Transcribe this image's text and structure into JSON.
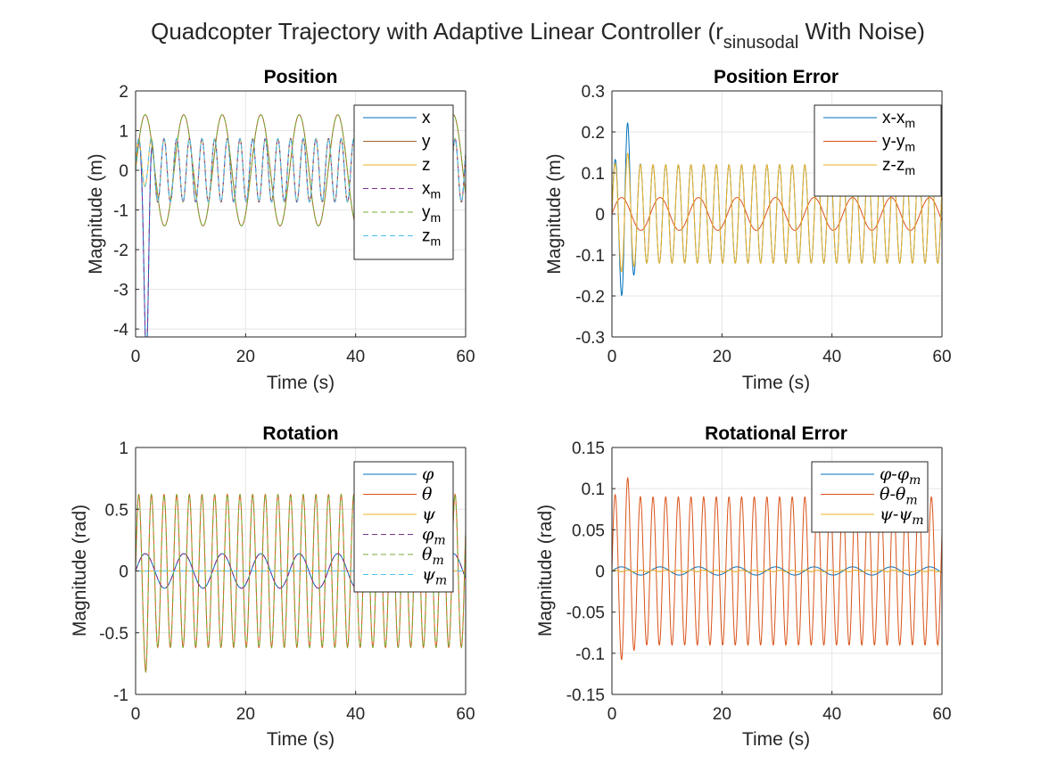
{
  "figure": {
    "title_main": "Quadcopter Trajectory with Adaptive Linear Controller (r",
    "title_sub": "sinusodal",
    "title_tail": " With Noise)"
  },
  "colors": {
    "blue": "#0072BD",
    "orange": "#D95319",
    "yellow": "#EDB120",
    "purple": "#7E2F8E",
    "green": "#77AC30",
    "cyan": "#4DBEEE",
    "brown": "#A2652A",
    "grid": "#e5e5e5",
    "axis": "#262626"
  },
  "chart_data": [
    {
      "id": "position",
      "type": "line",
      "title": "Position",
      "xlabel": "Time (s)",
      "ylabel": "Magnitude (m)",
      "xlim": [
        0,
        60
      ],
      "ylim": [
        -4.2,
        2
      ],
      "xticks": [
        0,
        20,
        40,
        60
      ],
      "yticks": [
        -4,
        -3,
        -2,
        -1,
        0,
        1,
        2
      ],
      "grid": true,
      "legend_position": "top-right",
      "legend": [
        {
          "base": "x",
          "sub": "",
          "color": "blue",
          "dash": false
        },
        {
          "base": "y",
          "sub": "",
          "color": "brown",
          "dash": false
        },
        {
          "base": "z",
          "sub": "",
          "color": "yellow",
          "dash": false
        },
        {
          "base": "x",
          "sub": "m",
          "color": "purple",
          "dash": true
        },
        {
          "base": "y",
          "sub": "m",
          "color": "green",
          "dash": true
        },
        {
          "base": "z",
          "sub": "m",
          "color": "cyan",
          "dash": true
        }
      ],
      "series": [
        {
          "color": "blue",
          "dash": false,
          "amplitude": 0.8,
          "period": 2.3,
          "dip": -4.1,
          "dip_time": 2.0
        },
        {
          "color": "brown",
          "dash": false,
          "amplitude": 1.4,
          "period": 7.0
        },
        {
          "color": "yellow",
          "dash": false,
          "amplitude": 0.8,
          "period": 2.3,
          "peak": 1.2
        },
        {
          "color": "purple",
          "dash": true,
          "amplitude": 0.8,
          "period": 2.3,
          "dip": -4.1,
          "dip_time": 2.0
        },
        {
          "color": "green",
          "dash": true,
          "amplitude": 1.4,
          "period": 7.0
        },
        {
          "color": "cyan",
          "dash": true,
          "amplitude": 0.8,
          "period": 2.3,
          "peak": 1.2
        }
      ]
    },
    {
      "id": "position-error",
      "type": "line",
      "title": "Position Error",
      "xlabel": "Time (s)",
      "ylabel": "Magnitude (m)",
      "xlim": [
        0,
        60
      ],
      "ylim": [
        -0.3,
        0.3
      ],
      "xticks": [
        0,
        20,
        40,
        60
      ],
      "yticks": [
        -0.3,
        -0.2,
        -0.1,
        0,
        0.1,
        0.2,
        0.3
      ],
      "ytick_labels": [
        "-0.3",
        "-0.2",
        "-0.1",
        "0",
        "0.1",
        "0.2",
        "0.3"
      ],
      "grid": true,
      "legend_position": "top-right",
      "legend": [
        {
          "base": "x-x",
          "sub": "m",
          "color": "blue",
          "dash": false
        },
        {
          "base": "y-y",
          "sub": "m",
          "color": "orange",
          "dash": false
        },
        {
          "base": "z-z",
          "sub": "m",
          "color": "yellow",
          "dash": false
        }
      ],
      "series": [
        {
          "color": "blue",
          "dash": false,
          "amplitude": 0.12,
          "period": 2.3,
          "peak": 0.23,
          "trough": -0.23
        },
        {
          "color": "orange",
          "dash": false,
          "amplitude": 0.04,
          "period": 7.0
        },
        {
          "color": "yellow",
          "dash": false,
          "amplitude": 0.12,
          "period": 2.3,
          "peak": 0.15,
          "trough": -0.18
        }
      ]
    },
    {
      "id": "rotation",
      "type": "line",
      "title": "Rotation",
      "xlabel": "Time (s)",
      "ylabel": "Magnitude (rad)",
      "xlim": [
        0,
        60
      ],
      "ylim": [
        -1,
        1
      ],
      "xticks": [
        0,
        20,
        40,
        60
      ],
      "yticks": [
        -1,
        -0.5,
        0,
        0.5,
        1
      ],
      "ytick_labels": [
        "-1",
        "-0.5",
        "0",
        "0.5",
        "1"
      ],
      "grid": true,
      "legend_position": "top-right",
      "legend": [
        {
          "base": "φ",
          "sub": "",
          "color": "blue",
          "dash": false,
          "italic": true
        },
        {
          "base": "θ",
          "sub": "",
          "color": "orange",
          "dash": false,
          "italic": true
        },
        {
          "base": "ψ",
          "sub": "",
          "color": "yellow",
          "dash": false,
          "italic": true
        },
        {
          "base": "φ",
          "sub": "m",
          "color": "purple",
          "dash": true,
          "italic": true
        },
        {
          "base": "θ",
          "sub": "m",
          "color": "green",
          "dash": true,
          "italic": true
        },
        {
          "base": "ψ",
          "sub": "m",
          "color": "cyan",
          "dash": true,
          "italic": true
        }
      ],
      "series": [
        {
          "color": "blue",
          "dash": false,
          "amplitude": 0.14,
          "period": 7.0
        },
        {
          "color": "orange",
          "dash": false,
          "amplitude": 0.62,
          "period": 2.3,
          "trough": -0.9
        },
        {
          "color": "yellow",
          "dash": false,
          "amplitude": 0.0,
          "period": 2.3
        },
        {
          "color": "purple",
          "dash": true,
          "amplitude": 0.14,
          "period": 7.0
        },
        {
          "color": "green",
          "dash": true,
          "amplitude": 0.62,
          "period": 2.3,
          "trough": -0.9
        },
        {
          "color": "cyan",
          "dash": true,
          "amplitude": 0.0,
          "period": 2.3
        }
      ]
    },
    {
      "id": "rotational-error",
      "type": "line",
      "title": "Rotational Error",
      "xlabel": "Time (s)",
      "ylabel": "Magnitude (rad)",
      "xlim": [
        0,
        60
      ],
      "ylim": [
        -0.15,
        0.15
      ],
      "xticks": [
        0,
        20,
        40,
        60
      ],
      "yticks": [
        -0.15,
        -0.1,
        -0.05,
        0,
        0.05,
        0.1,
        0.15
      ],
      "ytick_labels": [
        "-0.15",
        "-0.1",
        "-0.05",
        "0",
        "0.05",
        "0.1",
        "0.15"
      ],
      "grid": true,
      "legend_position": "top-right",
      "legend": [
        {
          "base": "φ-φ",
          "sub": "m",
          "color": "blue",
          "dash": false,
          "italic": true
        },
        {
          "base": "θ-θ",
          "sub": "m",
          "color": "orange",
          "dash": false,
          "italic": true
        },
        {
          "base": "ψ-ψ",
          "sub": "m",
          "color": "yellow",
          "dash": false,
          "italic": true
        }
      ],
      "series": [
        {
          "color": "blue",
          "dash": false,
          "amplitude": 0.005,
          "period": 7.0
        },
        {
          "color": "orange",
          "dash": false,
          "amplitude": 0.09,
          "period": 2.3,
          "peak": 0.115,
          "trough": -0.115
        },
        {
          "color": "yellow",
          "dash": false,
          "amplitude": 0.001,
          "period": 2.3
        }
      ]
    }
  ]
}
